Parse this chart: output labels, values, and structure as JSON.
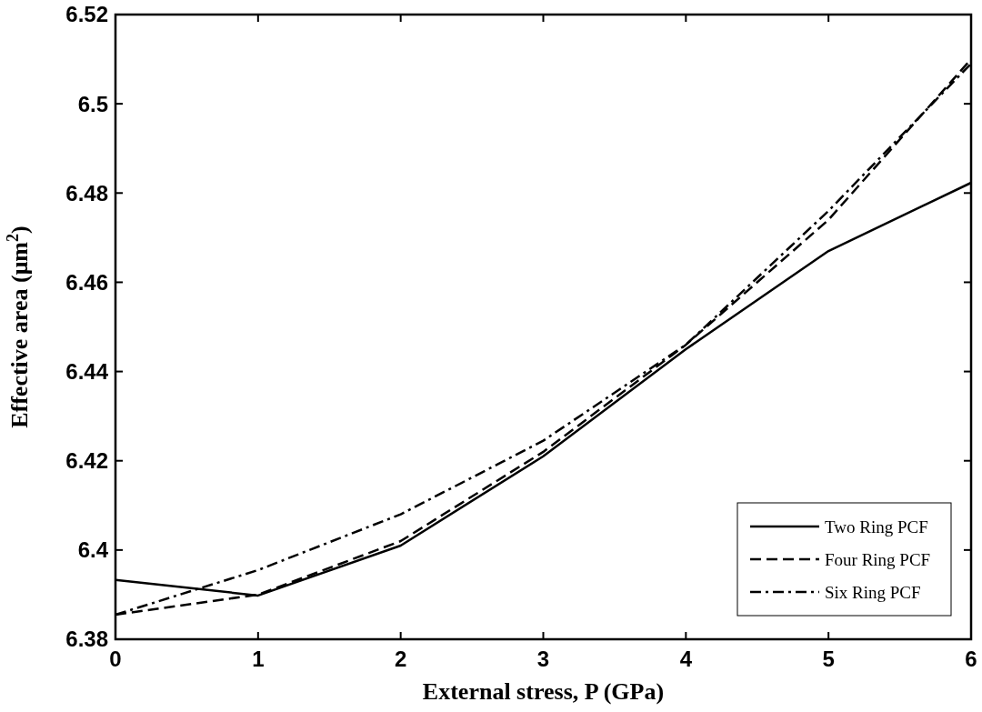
{
  "chart_data": {
    "type": "line",
    "xlabel": "External stress, P  (GPa)",
    "ylabel": "Effective area (μm$^{2}$)",
    "x": [
      0,
      1,
      2,
      3,
      4,
      5,
      6
    ],
    "series": [
      {
        "name": "Two Ring PCF",
        "color": "#000000",
        "line_style": "solid",
        "values": [
          6.3933,
          6.3898,
          6.401,
          6.421,
          6.445,
          6.467,
          6.4823
        ]
      },
      {
        "name": "Four Ring PCF",
        "color": "#000000",
        "line_style": "dashed",
        "values": [
          6.3855,
          6.39,
          6.402,
          6.422,
          6.446,
          6.474,
          6.51
        ]
      },
      {
        "name": "Six Ring PCF",
        "color": "#000000",
        "line_style": "dashdot",
        "values": [
          6.3855,
          6.3955,
          6.408,
          6.4245,
          6.446,
          6.476,
          6.509
        ]
      }
    ],
    "xlim": [
      0,
      6
    ],
    "xticks": [
      0,
      1,
      2,
      3,
      4,
      5,
      6
    ],
    "ylim": [
      6.38,
      6.52
    ],
    "yticks": [
      6.38,
      6.4,
      6.42,
      6.44,
      6.46,
      6.48,
      6.5,
      6.52
    ],
    "grid": false,
    "legend": "bottom right"
  }
}
